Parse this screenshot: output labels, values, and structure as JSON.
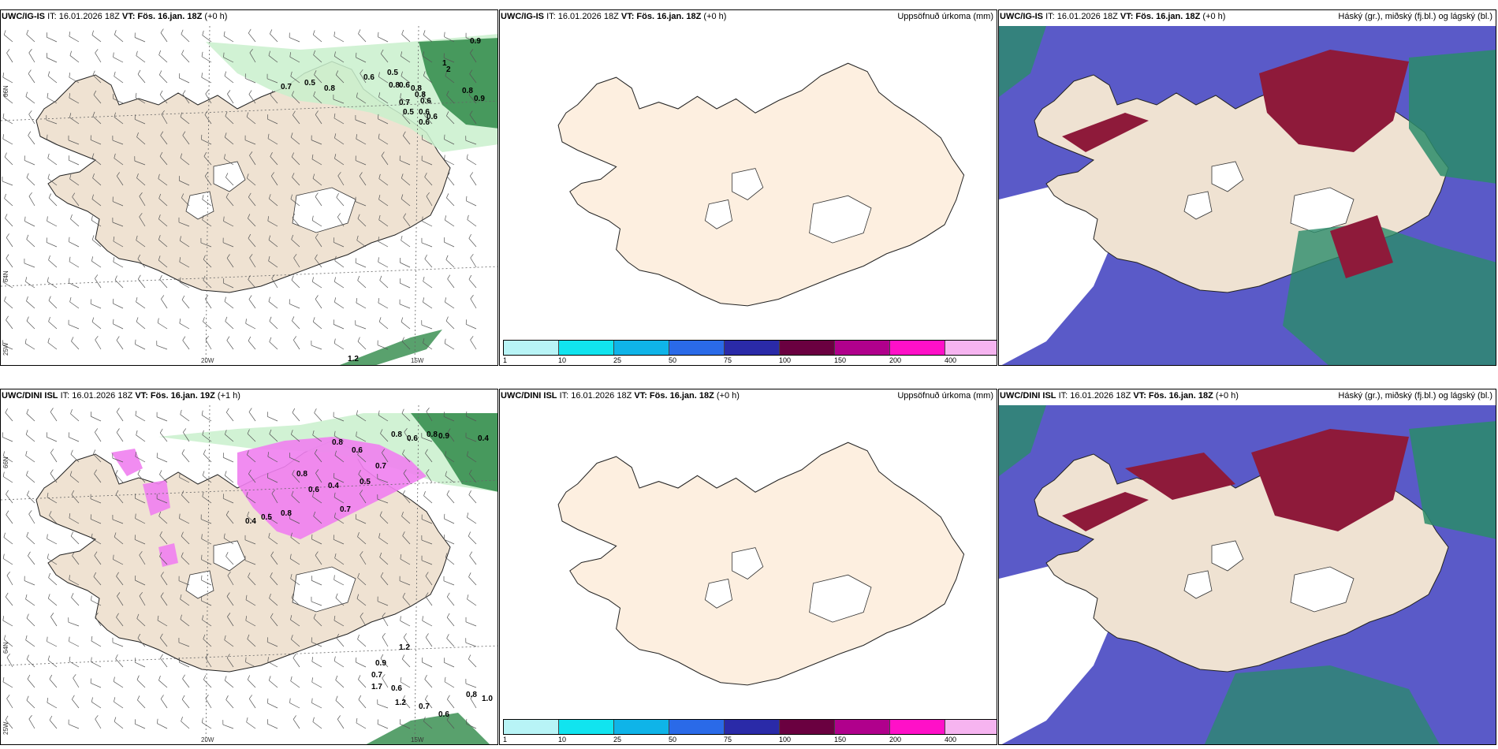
{
  "rows": [
    {
      "left": {
        "model": "UWC/IG-IS",
        "it": "IT: 16.01.2026 18Z",
        "vt": "VT: Fös. 16.jan. 18Z",
        "lead": "(+0 h)"
      },
      "middle": {
        "model": "UWC/IG-IS",
        "it": "IT: 16.01.2026 18Z",
        "vt": "VT: Fös. 16.jan. 18Z",
        "lead": "(+0 h)",
        "right_label": "Uppsöfnuð úrkoma (mm)"
      },
      "right": {
        "model": "UWC/IG-IS",
        "it": "IT: 16.01.2026 18Z",
        "vt": "VT: Fös. 16.jan. 18Z",
        "lead": "(+0 h)",
        "right_label": "Háský (gr.), miðský (fj.bl.) og lágský (bl.)"
      }
    },
    {
      "left": {
        "model": "UWC/DINI ISL",
        "it": "IT: 16.01.2026 18Z",
        "vt": "VT: Fös. 16.jan. 19Z",
        "lead": "(+1 h)"
      },
      "middle": {
        "model": "UWC/DINI ISL",
        "it": "IT: 16.01.2026 18Z",
        "vt": "VT: Fös. 16.jan. 18Z",
        "lead": "(+0 h)",
        "right_label": "Uppsöfnuð úrkoma (mm)"
      },
      "right": {
        "model": "UWC/DINI ISL",
        "it": "IT: 16.01.2026 18Z",
        "vt": "VT: Fös. 16.jan. 18Z",
        "lead": "(+0 h)",
        "right_label": "Háský (gr.), miðský (fj.bl.) og lágský (bl.)"
      }
    }
  ],
  "map_labels": {
    "lon_20w": "20W",
    "lon_15w": "15W",
    "lat_66n": "66N",
    "lat_64n": "64N",
    "lon_25w": "25W"
  },
  "colorbar": {
    "ticks": [
      "1",
      "10",
      "25",
      "50",
      "75",
      "100",
      "150",
      "200",
      "400"
    ],
    "colors": [
      "#b8f4f6",
      "#11e4ef",
      "#0fb4e8",
      "#2a6ae8",
      "#2a2aa8",
      "#6a0040",
      "#b0008c",
      "#ff10c8",
      "#f6b4f0"
    ]
  },
  "precip_labels_top": [
    "0.7",
    "0.5",
    "0.8",
    "0.6",
    "0.5",
    "0.8",
    "0.6",
    "0.8",
    "0.8",
    "0.6",
    "0.7",
    "0.5",
    "0.6",
    "0.6",
    "0.6",
    "0.9",
    "0.8",
    "0.9",
    "1",
    "2",
    "1.2"
  ],
  "precip_labels_bottom": [
    "0.8",
    "0.6",
    "0.8",
    "0.9",
    "0.4",
    "0.8",
    "0.6",
    "0.7",
    "0.5",
    "0.4",
    "0.8",
    "0.6",
    "0.7",
    "0.8",
    "0.5",
    "0.4",
    "1.2",
    "0.9",
    "0.7",
    "1.7",
    "0.6",
    "1.2",
    "0.7",
    "0.6",
    "0.8",
    "1.0"
  ],
  "colors": {
    "land": "#efe2d2",
    "land_middle": "#fdefe0",
    "high_cloud": "#8e1a3a",
    "mid_cloud": "#5a5ac8",
    "low_cloud": "#2a8c6a",
    "light_green": "#c9f0cc",
    "dark_green": "#2f8a48",
    "pink": "#ef7ff0"
  }
}
